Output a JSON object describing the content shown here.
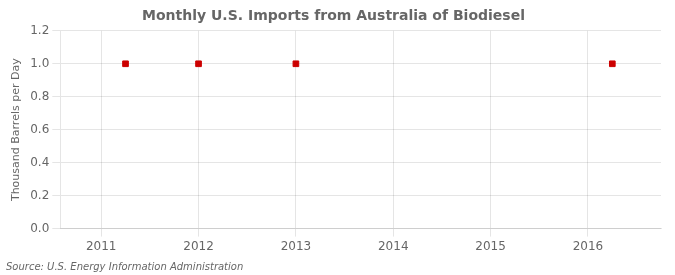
{
  "chart_data": {
    "type": "scatter",
    "title": "Monthly U.S. Imports from Australia of Biodiesel",
    "ylabel": "Thousand Barrels per Day",
    "annotations": [
      "Source: U.S. Energy Information Administration"
    ],
    "x": [
      2011.25,
      2012.0,
      2013.0,
      2016.25
    ],
    "values": [
      1.0,
      1.0,
      1.0,
      1.0
    ],
    "color": "#CC0000",
    "marker": "square",
    "xlim": [
      2010.58,
      2016.75
    ],
    "xticks": [
      2011,
      2012,
      2013,
      2014,
      2015,
      2016
    ],
    "ylim": [
      0.0,
      1.2
    ],
    "yticks": [
      {
        "value": 0.0,
        "label": "0.0"
      },
      0.2,
      0.4,
      0.6,
      0.8,
      {
        "value": 1.0,
        "label": "1.0"
      },
      1.2
    ],
    "grid": true
  }
}
